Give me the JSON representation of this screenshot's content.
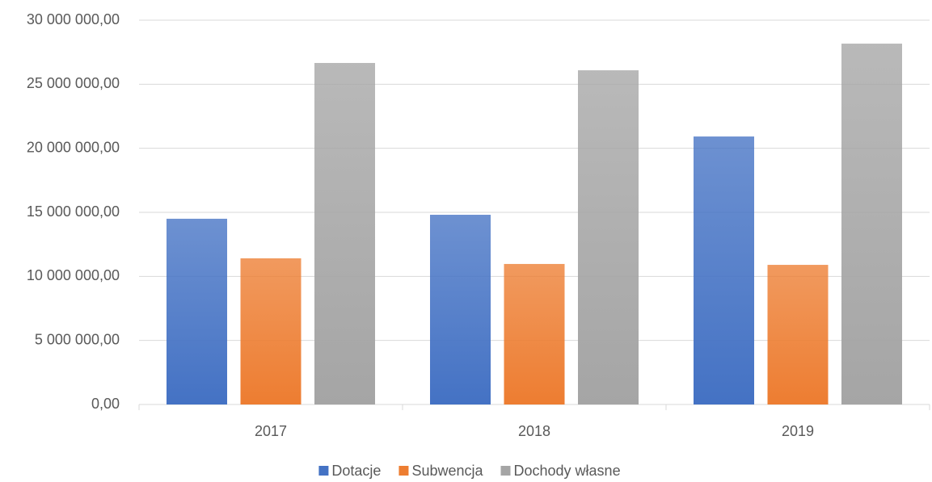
{
  "chart_data": {
    "type": "bar",
    "categories": [
      "2017",
      "2018",
      "2019"
    ],
    "series": [
      {
        "name": "Dotacje",
        "color": "#4472c4",
        "values": [
          14500000,
          14810000,
          20920000
        ]
      },
      {
        "name": "Subwencja",
        "color": "#ed7d31",
        "values": [
          11410000,
          10970000,
          10900000
        ]
      },
      {
        "name": "Dochody własne",
        "color": "#a5a5a5",
        "values": [
          26660000,
          26090000,
          28170000
        ]
      }
    ],
    "ylim": [
      0,
      30000000
    ],
    "yticks": [
      {
        "value": 0,
        "label": "0,00"
      },
      {
        "value": 5000000,
        "label": "5 000 000,00"
      },
      {
        "value": 10000000,
        "label": "10 000 000,00"
      },
      {
        "value": 15000000,
        "label": "15 000 000,00"
      },
      {
        "value": 20000000,
        "label": "20 000 000,00"
      },
      {
        "value": 25000000,
        "label": "25 000 000,00"
      },
      {
        "value": 30000000,
        "label": "30 000 000,00"
      }
    ],
    "grid": true,
    "legend": "bottom"
  }
}
